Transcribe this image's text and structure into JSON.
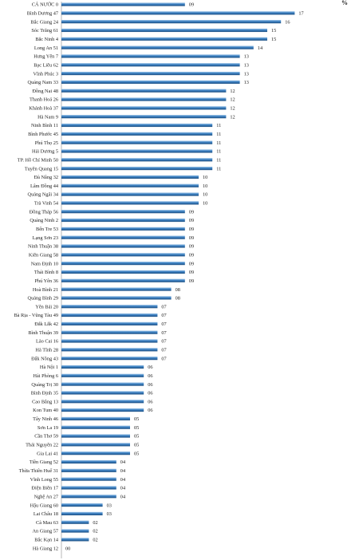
{
  "chart_data": {
    "type": "bar",
    "orientation": "horizontal",
    "unit": "%",
    "grid": false,
    "legend": "none",
    "bar_color": "#2e6da4",
    "categories": [
      "CẢ NƯỚC  0",
      "Bình Dương  47",
      "Bắc Giang  24",
      "Sóc Trăng  61",
      "Bắc Ninh  4",
      "Long An  51",
      "Hưng Yên  7",
      "Bạc Liêu  62",
      "Vĩnh Phúc  3",
      "Quảng Nam  33",
      "Đồng Nai  48",
      "Thanh Hoá  26",
      "Khánh Hoà  37",
      "Hà Nam  9",
      "Ninh Bình  11",
      "Bình Phước  45",
      "Phú Thọ  25",
      "Hải Dương  5",
      "TP. Hồ Chí Minh  50",
      "Tuyên Quang  15",
      "Đà Nẵng  32",
      "Lâm Đồng  44",
      "Quảng Ngãi  34",
      "Trà Vinh  54",
      "Đồng Tháp  56",
      "Quảng Ninh  2",
      "Bến Tre  53",
      "Lạng Sơn  23",
      "Ninh Thuận  38",
      "Kiên Giang  58",
      "Nam Định  10",
      "Thái Bình  8",
      "Phú Yên  36",
      "Hoà Bình  21",
      "Quảng Bình  29",
      "Yên Bái  20",
      "Bà Rịa - Vũng Tàu  49",
      "Đắk Lắk  42",
      "Bình Thuận  39",
      "Lào Cai  16",
      "Hà Tĩnh  28",
      "Đắk Nông  43",
      "Hà Nội  1",
      "Hải Phòng  6",
      "Quảng Trị  30",
      "Bình Định  35",
      "Cao Bằng  13",
      "Kon Tum  40",
      "Tây Ninh  46",
      "Sơn La  19",
      "Cần Thơ  59",
      "Thái Nguyên  22",
      "Gia Lai  41",
      "Tiền Giang  52",
      "Thừa Thiên Huế  31",
      "Vĩnh Long  55",
      "Điện Biên  17",
      "Nghệ An  27",
      "Hậu Giang 60",
      "Lai Châu 18",
      "Cà Mau  63",
      "An Giang  57",
      "Bắc Kạn  14",
      "Hà Giang  12"
    ],
    "values": [
      9,
      17,
      16,
      15,
      15,
      14,
      13,
      13,
      13,
      13,
      12,
      12,
      12,
      12,
      11,
      11,
      11,
      11,
      11,
      11,
      10,
      10,
      10,
      10,
      9,
      9,
      9,
      9,
      9,
      9,
      9,
      9,
      9,
      8,
      8,
      7,
      7,
      7,
      7,
      7,
      7,
      7,
      6,
      6,
      6,
      6,
      6,
      6,
      5,
      5,
      5,
      5,
      5,
      4,
      4,
      4,
      4,
      4,
      3,
      3,
      2,
      2,
      2,
      0
    ],
    "value_labels": [
      "09",
      "17",
      "16",
      "15",
      "15",
      "14",
      "13",
      "13",
      "13",
      "13",
      "12",
      "12",
      "12",
      "12",
      "11",
      "11",
      "11",
      "11",
      "11",
      "11",
      "10",
      "10",
      "10",
      "10",
      "09",
      "09",
      "09",
      "09",
      "09",
      "09",
      "09",
      "09",
      "09",
      "08",
      "08",
      "07",
      "07",
      "07",
      "07",
      "07",
      "07",
      "07",
      "06",
      "06",
      "06",
      "06",
      "06",
      "06",
      "05",
      "05",
      "05",
      "05",
      "05",
      "04",
      "04",
      "04",
      "04",
      "04",
      "03",
      "03",
      "02",
      "02",
      "02",
      "00"
    ],
    "xlim": [
      0,
      17.5
    ]
  }
}
